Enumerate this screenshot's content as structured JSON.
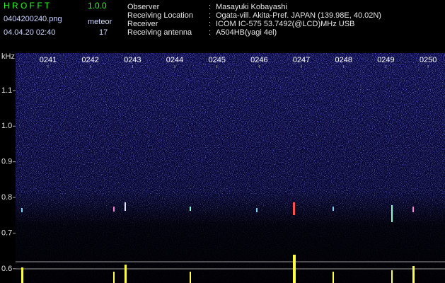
{
  "header": {
    "app": "H R O F F T",
    "version": "1.0.0",
    "file": "0404200240.png",
    "meteor_label": "meteor",
    "datetime": "04.04.20 02:40",
    "meteor_count": "17",
    "fields": [
      {
        "label": "Observer",
        "value": "Masayuki Kobayashi"
      },
      {
        "label": "Receiving Location",
        "value": "Ogata-vill. Akita-Pref. JAPAN (139.98E, 40.02N)"
      },
      {
        "label": "Receiver",
        "value": "ICOM IC-575 53.7492(@LCD)MHz USB"
      },
      {
        "label": "Receiving antenna",
        "value": "A504HB(yagi 4el)"
      }
    ]
  },
  "chart_data": {
    "type": "spectrogram",
    "y_label": "kHz",
    "xlim": [
      240.23,
      250.4
    ],
    "xticks": [
      {
        "value": 241,
        "label": "0241"
      },
      {
        "value": 242,
        "label": "0242"
      },
      {
        "value": 243,
        "label": "0243"
      },
      {
        "value": 244,
        "label": "0244"
      },
      {
        "value": 245,
        "label": "0245"
      },
      {
        "value": 246,
        "label": "0246"
      },
      {
        "value": 247,
        "label": "0247"
      },
      {
        "value": 248,
        "label": "0248"
      },
      {
        "value": 249,
        "label": "0249"
      },
      {
        "value": 250,
        "label": "0250"
      }
    ],
    "ylim": [
      0.56,
      1.205
    ],
    "yticks": [
      1.1,
      {
        "value": 1,
        "label": "1.0"
      },
      0.9,
      0.8,
      0.7,
      0.6
    ]
  }
}
